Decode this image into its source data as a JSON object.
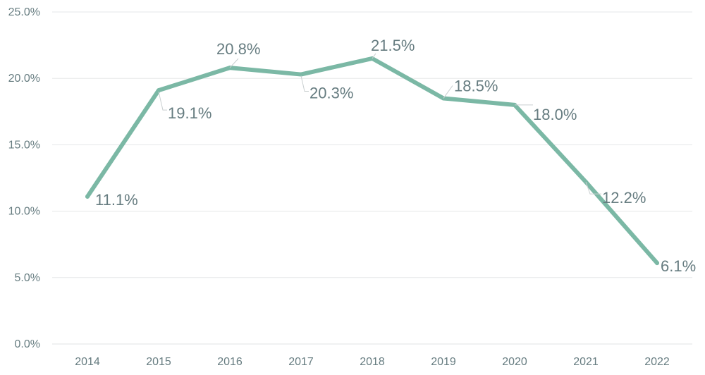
{
  "chart_data": {
    "type": "line",
    "title": "",
    "xlabel": "",
    "ylabel": "",
    "categories": [
      "2014",
      "2015",
      "2016",
      "2017",
      "2018",
      "2019",
      "2020",
      "2021",
      "2022"
    ],
    "series": [
      {
        "name": "Series 1",
        "values": [
          11.1,
          19.1,
          20.8,
          20.3,
          21.5,
          18.5,
          18.0,
          12.2,
          6.1
        ],
        "labels": [
          "11.1%",
          "19.1%",
          "20.8%",
          "20.3%",
          "21.5%",
          "18.5%",
          "18.0%",
          "12.2%",
          "6.1%"
        ],
        "color": "#7bb8a5"
      }
    ],
    "ylim": [
      0,
      25
    ],
    "yticks": [
      0,
      5,
      10,
      15,
      20,
      25
    ],
    "ytick_labels": [
      "0.0%",
      "5.0%",
      "10.0%",
      "15.0%",
      "20.0%",
      "25.0%"
    ],
    "grid": true,
    "legend": "none"
  }
}
